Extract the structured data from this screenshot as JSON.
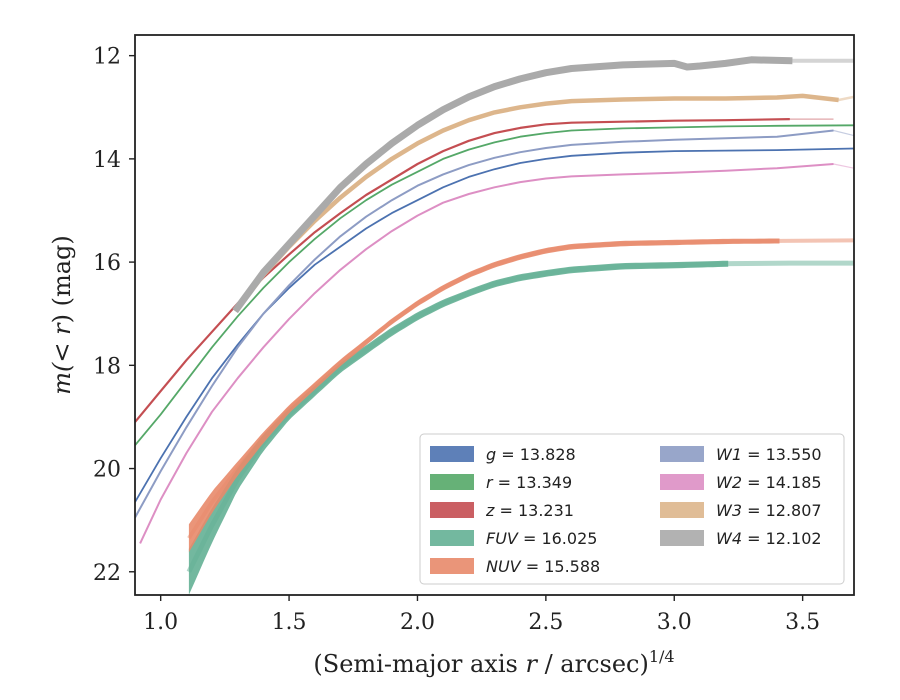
{
  "chart_data": {
    "type": "line",
    "title": "",
    "xlabel": "(Semi-major axis r / arcsec)^1/4",
    "xlabel_main": "(Semi-major axis ",
    "xlabel_var": "r",
    "xlabel_rest": " / arcsec)",
    "xlabel_exp": "1/4",
    "ylabel": "m(< r) (mag)",
    "ylabel_prefix": "m(< ",
    "ylabel_var": "r",
    "ylabel_suffix": ") (mag)",
    "xlim": [
      0.9,
      3.7
    ],
    "ylim": [
      22.45,
      11.6
    ],
    "y_inverted": true,
    "xticks": [
      1.0,
      1.5,
      2.0,
      2.5,
      3.0,
      3.5
    ],
    "xtick_labels": [
      "1.0",
      "1.5",
      "2.0",
      "2.5",
      "3.0",
      "3.5"
    ],
    "yticks": [
      12,
      14,
      16,
      18,
      20,
      22
    ],
    "ytick_labels": [
      "12",
      "14",
      "16",
      "18",
      "20",
      "22"
    ],
    "grid": false,
    "legend_position": "lower-right",
    "series": [
      {
        "name": "g = 13.828",
        "band": "g",
        "value": "13.828",
        "color": "#4c72b0",
        "start": 0.9,
        "end": 3.7,
        "thick_end": 3.7,
        "points": [
          [
            0.9,
            20.65
          ],
          [
            1.0,
            19.8
          ],
          [
            1.1,
            19.0
          ],
          [
            1.2,
            18.25
          ],
          [
            1.3,
            17.6
          ],
          [
            1.4,
            17.0
          ],
          [
            1.5,
            16.5
          ],
          [
            1.6,
            16.05
          ],
          [
            1.7,
            15.7
          ],
          [
            1.8,
            15.35
          ],
          [
            1.9,
            15.05
          ],
          [
            2.0,
            14.8
          ],
          [
            2.1,
            14.55
          ],
          [
            2.2,
            14.35
          ],
          [
            2.3,
            14.2
          ],
          [
            2.4,
            14.08
          ],
          [
            2.5,
            14.0
          ],
          [
            2.6,
            13.94
          ],
          [
            2.8,
            13.88
          ],
          [
            3.0,
            13.85
          ],
          [
            3.2,
            13.84
          ],
          [
            3.4,
            13.83
          ],
          [
            3.7,
            13.8
          ]
        ],
        "band_width": 1.2,
        "thick_width": 1.8,
        "thin_opacity": 0.5
      },
      {
        "name": "r = 13.349",
        "band": "r",
        "value": "13.349",
        "color": "#55a868",
        "start": 0.9,
        "end": 3.7,
        "thick_end": 3.7,
        "points": [
          [
            0.9,
            19.55
          ],
          [
            1.0,
            18.95
          ],
          [
            1.1,
            18.3
          ],
          [
            1.2,
            17.65
          ],
          [
            1.3,
            17.05
          ],
          [
            1.4,
            16.5
          ],
          [
            1.5,
            16.0
          ],
          [
            1.6,
            15.55
          ],
          [
            1.7,
            15.15
          ],
          [
            1.8,
            14.8
          ],
          [
            1.9,
            14.5
          ],
          [
            2.0,
            14.25
          ],
          [
            2.1,
            14.0
          ],
          [
            2.2,
            13.82
          ],
          [
            2.3,
            13.68
          ],
          [
            2.4,
            13.57
          ],
          [
            2.5,
            13.5
          ],
          [
            2.6,
            13.45
          ],
          [
            2.8,
            13.41
          ],
          [
            3.0,
            13.39
          ],
          [
            3.2,
            13.37
          ],
          [
            3.4,
            13.36
          ],
          [
            3.7,
            13.35
          ]
        ],
        "band_width": 1.2,
        "thick_width": 1.8,
        "thin_opacity": 0.5
      },
      {
        "name": "z = 13.231",
        "band": "z",
        "value": "13.231",
        "color": "#c44e52",
        "start": 0.9,
        "end": 3.62,
        "thick_end": 3.45,
        "points": [
          [
            0.9,
            19.1
          ],
          [
            1.0,
            18.5
          ],
          [
            1.1,
            17.9
          ],
          [
            1.2,
            17.35
          ],
          [
            1.3,
            16.8
          ],
          [
            1.4,
            16.3
          ],
          [
            1.5,
            15.85
          ],
          [
            1.6,
            15.42
          ],
          [
            1.7,
            15.05
          ],
          [
            1.8,
            14.7
          ],
          [
            1.9,
            14.4
          ],
          [
            2.0,
            14.1
          ],
          [
            2.1,
            13.85
          ],
          [
            2.2,
            13.65
          ],
          [
            2.3,
            13.5
          ],
          [
            2.4,
            13.4
          ],
          [
            2.5,
            13.33
          ],
          [
            2.6,
            13.3
          ],
          [
            2.8,
            13.28
          ],
          [
            3.0,
            13.26
          ],
          [
            3.2,
            13.25
          ],
          [
            3.45,
            13.23
          ],
          [
            3.62,
            13.23
          ]
        ],
        "band_width": 1.2,
        "thick_width": 2.2,
        "thin_opacity": 0.5
      },
      {
        "name": "FUV = 16.025",
        "band": "FUV",
        "value": "16.025",
        "color": "#64b095",
        "start": 1.11,
        "end": 3.7,
        "thick_end": 3.22,
        "points": [
          [
            1.11,
            22.0
          ],
          [
            1.2,
            21.1
          ],
          [
            1.3,
            20.2
          ],
          [
            1.4,
            19.5
          ],
          [
            1.5,
            18.95
          ],
          [
            1.6,
            18.5
          ],
          [
            1.7,
            18.05
          ],
          [
            1.8,
            17.7
          ],
          [
            1.9,
            17.35
          ],
          [
            2.0,
            17.05
          ],
          [
            2.1,
            16.8
          ],
          [
            2.2,
            16.6
          ],
          [
            2.3,
            16.42
          ],
          [
            2.4,
            16.3
          ],
          [
            2.5,
            16.22
          ],
          [
            2.6,
            16.15
          ],
          [
            2.8,
            16.08
          ],
          [
            3.0,
            16.06
          ],
          [
            3.22,
            16.03
          ],
          [
            3.45,
            16.02
          ],
          [
            3.7,
            16.02
          ]
        ],
        "band_width": 5.0,
        "thick_width": 5.5,
        "thin_opacity": 0.5,
        "widths": [
          [
            1.11,
            46
          ],
          [
            1.3,
            22
          ],
          [
            1.5,
            11
          ],
          [
            1.8,
            9
          ],
          [
            2.2,
            7
          ],
          [
            3.22,
            6
          ]
        ]
      },
      {
        "name": "NUV = 15.588",
        "band": "NUV",
        "value": "15.588",
        "color": "#e8896a",
        "start": 1.11,
        "end": 3.7,
        "thick_end": 3.42,
        "points": [
          [
            1.11,
            21.35
          ],
          [
            1.2,
            20.65
          ],
          [
            1.3,
            20.0
          ],
          [
            1.4,
            19.4
          ],
          [
            1.5,
            18.85
          ],
          [
            1.6,
            18.4
          ],
          [
            1.7,
            17.95
          ],
          [
            1.8,
            17.55
          ],
          [
            1.9,
            17.15
          ],
          [
            2.0,
            16.8
          ],
          [
            2.1,
            16.5
          ],
          [
            2.2,
            16.25
          ],
          [
            2.3,
            16.05
          ],
          [
            2.4,
            15.9
          ],
          [
            2.5,
            15.78
          ],
          [
            2.6,
            15.7
          ],
          [
            2.8,
            15.64
          ],
          [
            3.0,
            15.62
          ],
          [
            3.2,
            15.6
          ],
          [
            3.42,
            15.59
          ],
          [
            3.7,
            15.58
          ]
        ],
        "band_width": 4.0,
        "thick_width": 4.5,
        "thin_opacity": 0.5,
        "widths": [
          [
            1.11,
            28
          ],
          [
            1.3,
            14
          ],
          [
            1.5,
            8
          ],
          [
            1.8,
            6
          ],
          [
            3.42,
            5
          ]
        ]
      },
      {
        "name": "W1 = 13.550",
        "band": "W1",
        "value": "13.550",
        "color": "#8d9cc4",
        "start": 0.9,
        "end": 3.7,
        "thick_end": 3.62,
        "points": [
          [
            0.9,
            20.95
          ],
          [
            1.0,
            20.05
          ],
          [
            1.1,
            19.2
          ],
          [
            1.2,
            18.4
          ],
          [
            1.3,
            17.65
          ],
          [
            1.4,
            17.0
          ],
          [
            1.5,
            16.45
          ],
          [
            1.6,
            15.95
          ],
          [
            1.7,
            15.5
          ],
          [
            1.8,
            15.12
          ],
          [
            1.9,
            14.8
          ],
          [
            2.0,
            14.52
          ],
          [
            2.1,
            14.3
          ],
          [
            2.2,
            14.12
          ],
          [
            2.3,
            13.98
          ],
          [
            2.4,
            13.87
          ],
          [
            2.5,
            13.79
          ],
          [
            2.6,
            13.73
          ],
          [
            2.8,
            13.67
          ],
          [
            3.0,
            13.63
          ],
          [
            3.2,
            13.6
          ],
          [
            3.4,
            13.57
          ],
          [
            3.62,
            13.45
          ],
          [
            3.7,
            13.55
          ]
        ],
        "band_width": 1.2,
        "thick_width": 2.0,
        "thin_opacity": 0.5
      },
      {
        "name": "W2 = 14.185",
        "band": "W2",
        "value": "14.185",
        "color": "#dd8fc4",
        "start": 0.92,
        "end": 3.7,
        "thick_end": 3.62,
        "points": [
          [
            0.92,
            21.45
          ],
          [
            1.0,
            20.6
          ],
          [
            1.1,
            19.7
          ],
          [
            1.2,
            18.9
          ],
          [
            1.3,
            18.25
          ],
          [
            1.4,
            17.65
          ],
          [
            1.5,
            17.1
          ],
          [
            1.6,
            16.6
          ],
          [
            1.7,
            16.15
          ],
          [
            1.8,
            15.75
          ],
          [
            1.9,
            15.4
          ],
          [
            2.0,
            15.1
          ],
          [
            2.1,
            14.85
          ],
          [
            2.2,
            14.68
          ],
          [
            2.3,
            14.55
          ],
          [
            2.4,
            14.45
          ],
          [
            2.5,
            14.38
          ],
          [
            2.6,
            14.34
          ],
          [
            2.8,
            14.3
          ],
          [
            3.0,
            14.27
          ],
          [
            3.2,
            14.23
          ],
          [
            3.4,
            14.18
          ],
          [
            3.62,
            14.1
          ],
          [
            3.7,
            14.18
          ]
        ],
        "band_width": 1.2,
        "thick_width": 2.0,
        "thin_opacity": 0.5
      },
      {
        "name": "W3 = 12.807",
        "band": "W3",
        "value": "12.807",
        "color": "#ddb68c",
        "start": 1.3,
        "end": 3.7,
        "thick_end": 3.64,
        "points": [
          [
            1.3,
            16.9
          ],
          [
            1.4,
            16.25
          ],
          [
            1.5,
            15.7
          ],
          [
            1.6,
            15.2
          ],
          [
            1.7,
            14.75
          ],
          [
            1.8,
            14.35
          ],
          [
            1.9,
            14.0
          ],
          [
            2.0,
            13.7
          ],
          [
            2.1,
            13.45
          ],
          [
            2.2,
            13.25
          ],
          [
            2.3,
            13.1
          ],
          [
            2.4,
            13.0
          ],
          [
            2.5,
            12.93
          ],
          [
            2.6,
            12.88
          ],
          [
            2.8,
            12.85
          ],
          [
            3.0,
            12.83
          ],
          [
            3.2,
            12.83
          ],
          [
            3.3,
            12.82
          ],
          [
            3.4,
            12.81
          ],
          [
            3.5,
            12.78
          ],
          [
            3.64,
            12.86
          ],
          [
            3.7,
            12.8
          ]
        ],
        "band_width": 2.5,
        "thick_width": 4.5,
        "thin_opacity": 0.5
      },
      {
        "name": "W4 = 12.102",
        "band": "W4",
        "value": "12.102",
        "color": "#aaaaaa",
        "start": 1.29,
        "end": 3.7,
        "thick_end": 3.46,
        "points": [
          [
            1.29,
            16.95
          ],
          [
            1.4,
            16.2
          ],
          [
            1.5,
            15.65
          ],
          [
            1.6,
            15.1
          ],
          [
            1.7,
            14.55
          ],
          [
            1.8,
            14.1
          ],
          [
            1.9,
            13.7
          ],
          [
            2.0,
            13.35
          ],
          [
            2.1,
            13.05
          ],
          [
            2.2,
            12.8
          ],
          [
            2.3,
            12.6
          ],
          [
            2.4,
            12.45
          ],
          [
            2.5,
            12.33
          ],
          [
            2.6,
            12.25
          ],
          [
            2.8,
            12.18
          ],
          [
            3.0,
            12.15
          ],
          [
            3.05,
            12.22
          ],
          [
            3.1,
            12.2
          ],
          [
            3.2,
            12.15
          ],
          [
            3.3,
            12.08
          ],
          [
            3.46,
            12.1
          ],
          [
            3.7,
            12.1
          ]
        ],
        "band_width": 4.0,
        "thick_width": 7.0,
        "thin_opacity": 0.5
      }
    ]
  }
}
